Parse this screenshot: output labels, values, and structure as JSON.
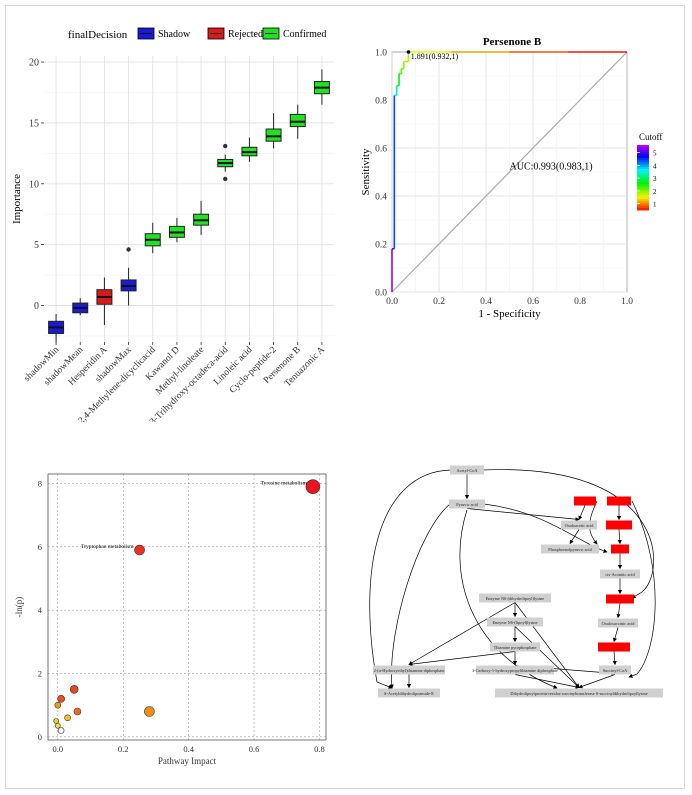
{
  "chart_data": [
    {
      "type": "box",
      "legend_title": "finalDecision",
      "legend": [
        {
          "name": "Shadow",
          "color": "#1a1ad6"
        },
        {
          "name": "Rejected",
          "color": "#d91a1a"
        },
        {
          "name": "Confirmed",
          "color": "#22e022"
        }
      ],
      "legend_placement": "top",
      "ylabel": "Importance",
      "ylim": [
        -3,
        20.5
      ],
      "yticks": [
        "0",
        "5",
        "10",
        "15",
        "20"
      ],
      "categories": [
        "shadowMin",
        "shadowMean",
        "Hesperidin A",
        "shadowMax",
        "2,4-Methylene-dicyclicacid",
        "Kawanol D",
        "Methyl-linoleate",
        "9,10,13-Trihydroxy-octadeca-acid",
        "Linoleic acid",
        "Cyclo-peptide-2",
        "Persenone B",
        "Tenuazonic A"
      ],
      "boxes": [
        {
          "group": "Shadow",
          "min": -3.1,
          "q1": -2.3,
          "median": -1.8,
          "q3": -1.3,
          "max": -0.7,
          "outliers": []
        },
        {
          "group": "Shadow",
          "min": -0.8,
          "q1": -0.6,
          "median": -0.2,
          "q3": 0.2,
          "max": 0.6,
          "outliers": []
        },
        {
          "group": "Rejected",
          "min": -1.6,
          "q1": 0.1,
          "median": 0.7,
          "q3": 1.3,
          "max": 2.3,
          "outliers": []
        },
        {
          "group": "Shadow",
          "min": 0.0,
          "q1": 1.2,
          "median": 1.6,
          "q3": 2.1,
          "max": 3.1,
          "outliers": [
            4.6
          ]
        },
        {
          "group": "Confirmed",
          "min": 4.3,
          "q1": 4.9,
          "median": 5.4,
          "q3": 5.9,
          "max": 6.8,
          "outliers": []
        },
        {
          "group": "Confirmed",
          "min": 5.2,
          "q1": 5.6,
          "median": 6.0,
          "q3": 6.5,
          "max": 7.2,
          "outliers": []
        },
        {
          "group": "Confirmed",
          "min": 5.8,
          "q1": 6.6,
          "median": 7.0,
          "q3": 7.5,
          "max": 8.6,
          "outliers": []
        },
        {
          "group": "Confirmed",
          "min": 11.0,
          "q1": 11.4,
          "median": 11.7,
          "q3": 12.0,
          "max": 12.4,
          "outliers": [
            13.1,
            10.4
          ]
        },
        {
          "group": "Confirmed",
          "min": 11.8,
          "q1": 12.3,
          "median": 12.6,
          "q3": 13.0,
          "max": 13.8,
          "outliers": []
        },
        {
          "group": "Confirmed",
          "min": 12.9,
          "q1": 13.5,
          "median": 13.9,
          "q3": 14.5,
          "max": 15.8,
          "outliers": []
        },
        {
          "group": "Confirmed",
          "min": 13.7,
          "q1": 14.7,
          "median": 15.1,
          "q3": 15.7,
          "max": 16.5,
          "outliers": []
        },
        {
          "group": "Confirmed",
          "min": 16.5,
          "q1": 17.4,
          "median": 17.9,
          "q3": 18.4,
          "max": 19.4,
          "outliers": []
        }
      ]
    },
    {
      "type": "line",
      "title": "Persenone B",
      "xlabel": "1 - Specificity",
      "ylabel": "Sensitivity",
      "xlim": [
        0,
        1
      ],
      "ylim": [
        0,
        1
      ],
      "ticks": [
        "0.0",
        "0.2",
        "0.4",
        "0.6",
        "0.8",
        "1.0"
      ],
      "legend_title": "Cutoff",
      "legend_ticks": [
        "1",
        "2",
        "3",
        "4",
        "5"
      ],
      "colorbar_range": [
        0.5,
        5.6
      ],
      "annotation": "1.891(0.932,1)",
      "auc_text": "AUC:0.993(0.983,1)",
      "series": [
        {
          "x": [
            0,
            0,
            0.01,
            0.01,
            0.02,
            0.02,
            0.03,
            0.03,
            0.04,
            0.04,
            0.05,
            0.05,
            0.07,
            0.07,
            0.25,
            0.5,
            0.75,
            1.0
          ],
          "y": [
            0,
            0.18,
            0.18,
            0.82,
            0.82,
            0.86,
            0.86,
            0.91,
            0.91,
            0.93,
            0.93,
            0.96,
            0.96,
            1.0,
            1.0,
            1.0,
            1.0,
            1.0
          ],
          "cutoff": [
            5.6,
            5.3,
            5.0,
            3.9,
            3.5,
            3.2,
            2.9,
            2.6,
            2.4,
            2.2,
            2.05,
            1.95,
            1.9,
            1.89,
            1.4,
            1.0,
            0.7,
            0.5
          ]
        }
      ],
      "diagonal": true
    },
    {
      "type": "scatter",
      "xlabel": "Pathway Impact",
      "ylabel": "-ln(p)",
      "xlim": [
        -0.03,
        0.82
      ],
      "ylim": [
        -0.1,
        8.3
      ],
      "xticks": [
        0.0,
        0.2,
        0.4,
        0.6,
        0.8
      ],
      "yticks": [
        0,
        2,
        4,
        6,
        8
      ],
      "points": [
        {
          "x": 0.78,
          "y": 7.9,
          "size": 7,
          "color": "#e8141e",
          "label": "Tyrosine metabolism"
        },
        {
          "x": 0.25,
          "y": 5.9,
          "size": 5,
          "color": "#e8321e",
          "label": "Tryptophan metabolism"
        },
        {
          "x": 0.28,
          "y": 0.8,
          "size": 5,
          "color": "#ef8c1a",
          "label": ""
        },
        {
          "x": 0.05,
          "y": 1.5,
          "size": 4,
          "color": "#e8461e",
          "label": ""
        },
        {
          "x": 0.01,
          "y": 1.2,
          "size": 3.5,
          "color": "#e8501e",
          "label": ""
        },
        {
          "x": 0.06,
          "y": 0.8,
          "size": 3.5,
          "color": "#ef6a1c",
          "label": ""
        },
        {
          "x": 0.0,
          "y": 1.0,
          "size": 3,
          "color": "#ef9a1a",
          "label": ""
        },
        {
          "x": 0.03,
          "y": 0.6,
          "size": 3,
          "color": "#f4c01a",
          "label": ""
        },
        {
          "x": -0.005,
          "y": 0.5,
          "size": 2.5,
          "color": "#f4d21a",
          "label": ""
        },
        {
          "x": 0.0,
          "y": 0.35,
          "size": 2.5,
          "color": "#f8e040",
          "label": ""
        },
        {
          "x": 0.01,
          "y": 0.2,
          "size": 3,
          "color": "#ffffff",
          "label": ""
        }
      ]
    },
    {
      "type": "diagram",
      "nodes": [
        {
          "id": "n0",
          "label": "Acetyl-CoA",
          "color": "#d0d0d0"
        },
        {
          "id": "n1",
          "label": "Pyruvic acid",
          "color": "#d0d0d0"
        },
        {
          "id": "n2",
          "label": "",
          "color": "#ff0000"
        },
        {
          "id": "n3",
          "label": "",
          "color": "#ff0000"
        },
        {
          "id": "n4",
          "label": "Oxaloacetic acid",
          "color": "#d0d0d0"
        },
        {
          "id": "n5",
          "label": "",
          "color": "#ff0000"
        },
        {
          "id": "n6",
          "label": "Phosphoenolpyruvic acid",
          "color": "#d0d0d0"
        },
        {
          "id": "n7",
          "label": "",
          "color": "#ff0000"
        },
        {
          "id": "n8",
          "label": "cis-Aconitic acid",
          "color": "#d0d0d0"
        },
        {
          "id": "n9",
          "label": "",
          "color": "#ff0000"
        },
        {
          "id": "n10",
          "label": "Enzyme N6-(dihydrolipoyl)lysine",
          "color": "#d0d0d0"
        },
        {
          "id": "n11",
          "label": "Oxalosuccinic acid",
          "color": "#d0d0d0"
        },
        {
          "id": "n12",
          "label": "Enzyme N6-(lipoyl)lysine",
          "color": "#d0d0d0"
        },
        {
          "id": "n13",
          "label": "",
          "color": "#ff0000"
        },
        {
          "id": "n14",
          "label": "Thiamine pyrophosphate",
          "color": "#d0d0d0"
        },
        {
          "id": "n15",
          "label": "2-(α-Hydroxyethyl)thiamine diphosphate",
          "color": "#d0d0d0"
        },
        {
          "id": "n16",
          "label": "3-Carboxy-1-hydroxypropylthiamine diphosphate",
          "color": "#d0d0d0"
        },
        {
          "id": "n17",
          "label": "Succinyl-CoA",
          "color": "#d0d0d0"
        },
        {
          "id": "n18",
          "label": "S-Acetyldihydrolipoamide-E",
          "color": "#d0d0d0"
        },
        {
          "id": "n19",
          "label": "Dihydrolipoylprotein-residue succinyltransferase S-succinyldihydrolipoyllysine",
          "color": "#d0d0d0"
        }
      ]
    }
  ]
}
